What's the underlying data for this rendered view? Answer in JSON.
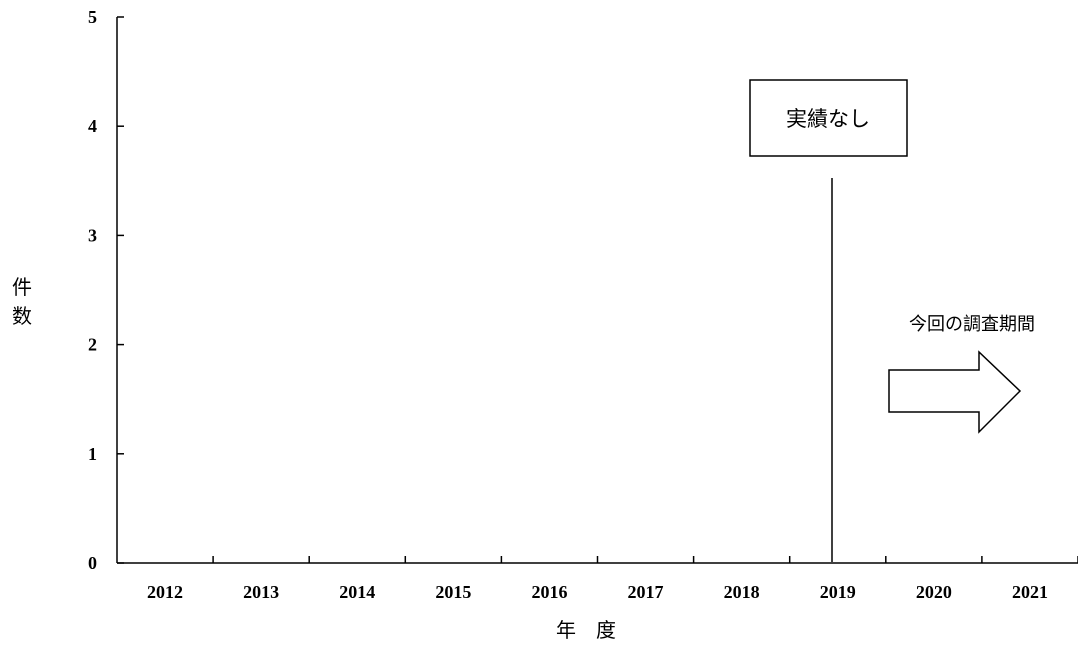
{
  "chart_data": {
    "type": "bar",
    "categories": [
      "2012",
      "2013",
      "2014",
      "2015",
      "2016",
      "2017",
      "2018",
      "2019",
      "2020",
      "2021"
    ],
    "values": [
      0,
      0,
      0,
      0,
      0,
      0,
      0,
      0,
      0,
      0
    ],
    "xlabel": "年　度",
    "ylabel": "件数",
    "ylim": [
      0,
      5
    ],
    "yticks": [
      "0",
      "1",
      "2",
      "3",
      "4",
      "5"
    ],
    "grid": false,
    "annotations": {
      "no_results": "実績なし",
      "survey_period": "今回の調査期間"
    },
    "survey_period_start": "2019/2020"
  }
}
